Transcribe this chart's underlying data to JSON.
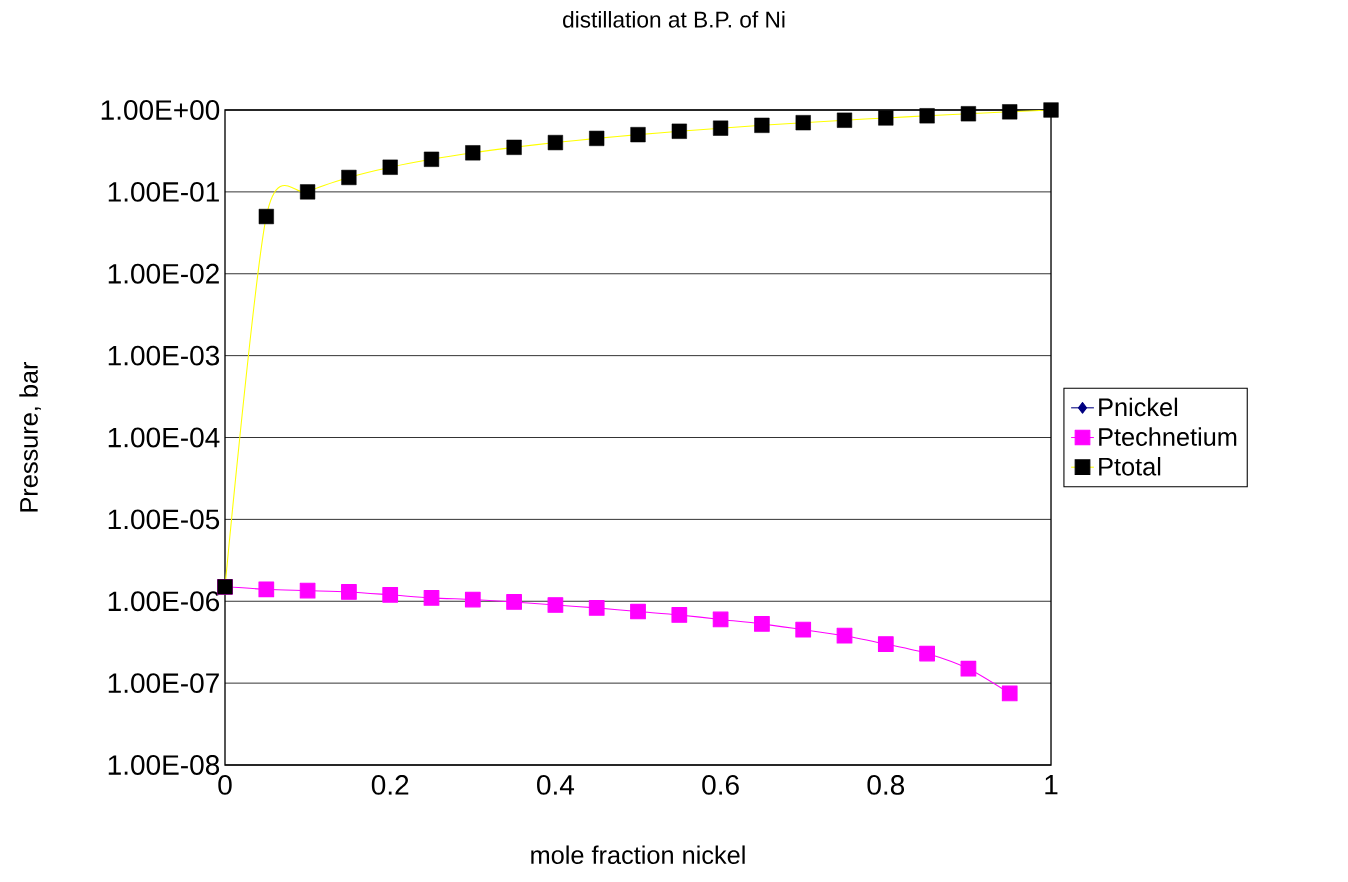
{
  "chart_data": {
    "type": "line",
    "title": "distillation at B.P. of Ni",
    "xlabel": "mole fraction nickel",
    "ylabel": "Pressure, bar",
    "x": [
      0,
      0.05,
      0.1,
      0.15,
      0.2,
      0.25,
      0.3,
      0.35,
      0.4,
      0.45,
      0.5,
      0.55,
      0.6,
      0.65,
      0.7,
      0.75,
      0.8,
      0.85,
      0.9,
      0.95,
      1
    ],
    "series": [
      {
        "name": "Pnickel",
        "color": "#000080",
        "marker": "diamond",
        "values": [
          null,
          null,
          null,
          null,
          null,
          null,
          null,
          null,
          null,
          null,
          null,
          null,
          null,
          null,
          null,
          null,
          null,
          null,
          null,
          null,
          null
        ]
      },
      {
        "name": "Ptechnetium",
        "color": "#ff00ff",
        "marker": "square",
        "values": [
          1.5e-06,
          1.4e-06,
          1.35e-06,
          1.3e-06,
          1.2e-06,
          1.1e-06,
          1.05e-06,
          9.8e-07,
          9e-07,
          8.3e-07,
          7.5e-07,
          6.8e-07,
          6e-07,
          5.3e-07,
          4.5e-07,
          3.8e-07,
          3e-07,
          2.3e-07,
          1.5e-07,
          7.5e-08,
          null
        ]
      },
      {
        "name": "Ptotal",
        "color": "#ffff00",
        "colors": [
          "#000000",
          "#000000",
          "#000000",
          "#000000",
          "#000000",
          "#000000",
          "#000000",
          "#000000",
          "#000000",
          "#000000",
          "#000000",
          "#000000",
          "#000000",
          "#000000",
          "#000000",
          "#000000",
          "#000000",
          "#000000",
          "#000000",
          "#000000",
          "#000000"
        ],
        "marker": "square",
        "values": [
          1.5e-06,
          0.05,
          0.1,
          0.15,
          0.2,
          0.25,
          0.3,
          0.35,
          0.4,
          0.45,
          0.5,
          0.55,
          0.6,
          0.65,
          0.7,
          0.75,
          0.8,
          0.85,
          0.9,
          0.95,
          1
        ]
      }
    ],
    "log": "y",
    "xlim": [
      0,
      1
    ],
    "ylim": [
      1e-08,
      1
    ],
    "xticks": [
      0,
      0.2,
      0.4,
      0.6,
      0.8,
      1
    ],
    "yticks": [
      {
        "value": 1e-08,
        "label": "1.00E-08"
      },
      {
        "value": 1e-07,
        "label": "1.00E-07"
      },
      {
        "value": 1e-06,
        "label": "1.00E-06"
      },
      {
        "value": 1e-05,
        "label": "1.00E-05"
      },
      {
        "value": 0.0001,
        "label": "1.00E-04"
      },
      {
        "value": 0.001,
        "label": "1.00E-03"
      },
      {
        "value": 0.01,
        "label": "1.00E-02"
      },
      {
        "value": 0.1,
        "label": "1.00E-01"
      },
      {
        "value": 1,
        "label": "1.00E+00"
      }
    ],
    "grid": "y",
    "legend": "right",
    "line_style": "solid"
  }
}
